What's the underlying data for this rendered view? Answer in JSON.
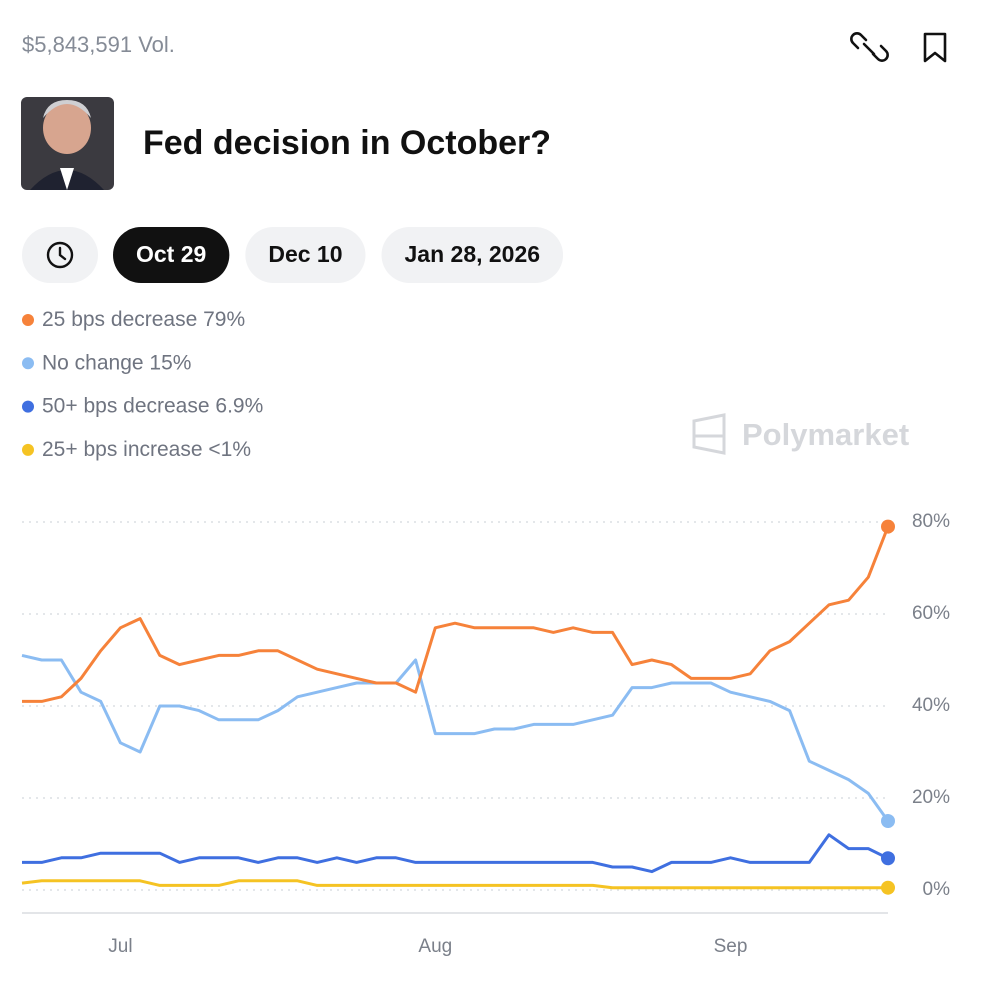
{
  "header": {
    "volume": "$5,843,591 Vol.",
    "title": "Fed decision in October?"
  },
  "tabs": [
    "Oct 29",
    "Dec 10",
    "Jan 28, 2026"
  ],
  "watermark": "Polymarket",
  "chart_data": {
    "type": "line",
    "categories": [
      null,
      null,
      null,
      null,
      null,
      "Jul",
      null,
      null,
      null,
      null,
      null,
      null,
      null,
      null,
      null,
      null,
      null,
      null,
      null,
      null,
      null,
      "Aug",
      null,
      null,
      null,
      null,
      null,
      null,
      null,
      null,
      null,
      null,
      null,
      null,
      null,
      null,
      "Sep",
      null,
      null,
      null,
      null,
      null,
      null,
      null,
      null
    ],
    "ylim": [
      0,
      80
    ],
    "yticks": [
      {
        "value": 0,
        "label": "0%"
      },
      {
        "value": 20,
        "label": "20%"
      },
      {
        "value": 40,
        "label": "40%"
      },
      {
        "value": 60,
        "label": "60%"
      },
      {
        "value": 80,
        "label": "80%"
      }
    ],
    "grid": true,
    "series": [
      {
        "name": "25 bps decrease",
        "legend_label": "79%",
        "color": "#f6823a",
        "values": [
          41,
          41,
          42,
          46,
          52,
          57,
          59,
          51,
          49,
          50,
          51,
          51,
          52,
          52,
          50,
          48,
          47,
          46,
          45,
          45,
          43,
          57,
          58,
          57,
          57,
          57,
          57,
          56,
          57,
          56,
          56,
          49,
          50,
          49,
          46,
          46,
          46,
          47,
          52,
          54,
          58,
          62,
          63,
          68,
          79
        ]
      },
      {
        "name": "No change",
        "legend_label": "15%",
        "color": "#8bbcf2",
        "values": [
          51,
          50,
          50,
          43,
          41,
          32,
          30,
          40,
          40,
          39,
          37,
          37,
          37,
          39,
          42,
          43,
          44,
          45,
          45,
          45,
          50,
          34,
          34,
          34,
          35,
          35,
          36,
          36,
          36,
          37,
          38,
          44,
          44,
          45,
          45,
          45,
          43,
          42,
          41,
          39,
          28,
          26,
          24,
          21,
          15
        ]
      },
      {
        "name": "50+ bps decrease",
        "legend_label": "6.9%",
        "color": "#3f6fe0",
        "values": [
          6,
          6,
          7,
          7,
          8,
          8,
          8,
          8,
          6,
          7,
          7,
          7,
          6,
          7,
          7,
          6,
          7,
          6,
          7,
          7,
          6,
          6,
          6,
          6,
          6,
          6,
          6,
          6,
          6,
          6,
          5,
          5,
          4,
          6,
          6,
          6,
          7,
          6,
          6,
          6,
          6,
          12,
          9,
          9,
          6.9
        ]
      },
      {
        "name": "25+ bps increase",
        "legend_label": "<1%",
        "color": "#f5c323",
        "values": [
          1.5,
          2,
          2,
          2,
          2,
          2,
          2,
          1,
          1,
          1,
          1,
          2,
          2,
          2,
          2,
          1,
          1,
          1,
          1,
          1,
          1,
          1,
          1,
          1,
          1,
          1,
          1,
          1,
          1,
          1,
          0.5,
          0.5,
          0.5,
          0.5,
          0.5,
          0.5,
          0.5,
          0.5,
          0.5,
          0.5,
          0.5,
          0.5,
          0.5,
          0.5,
          0.5
        ]
      }
    ]
  }
}
